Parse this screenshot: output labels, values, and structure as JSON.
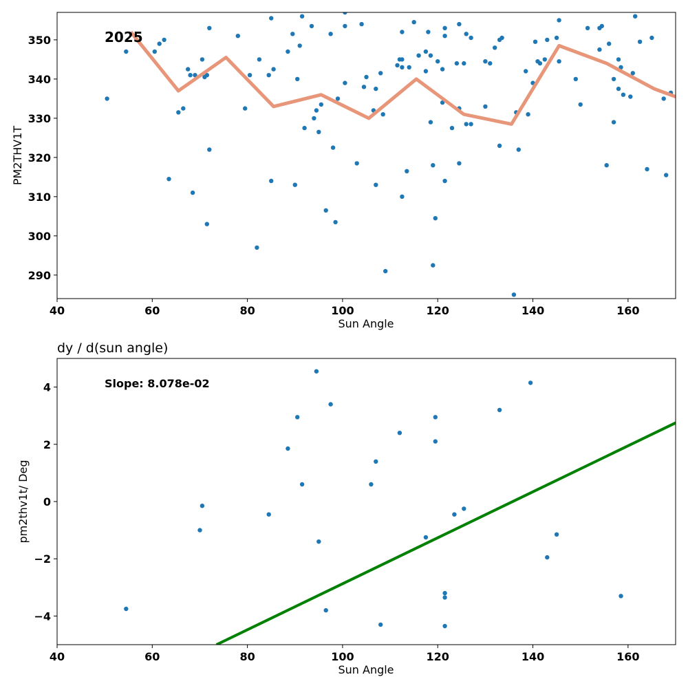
{
  "chart_data": [
    {
      "type": "scatter",
      "title": "",
      "xlabel": "Sun Angle",
      "ylabel": "PM2THV1T",
      "xlim": [
        40,
        170
      ],
      "ylim": [
        284,
        357
      ],
      "xticks": [
        40,
        60,
        80,
        100,
        120,
        140,
        160
      ],
      "yticks": [
        290,
        300,
        310,
        320,
        330,
        340,
        350
      ],
      "annotation": "2025",
      "grid": false,
      "series": [
        {
          "type": "scatter",
          "color": "#1f77b4",
          "points": [
            [
              50.5,
              335
            ],
            [
              54.5,
              347
            ],
            [
              60.5,
              347
            ],
            [
              61.5,
              349
            ],
            [
              62.5,
              350
            ],
            [
              63.5,
              314.5
            ],
            [
              65.5,
              331.5
            ],
            [
              66.5,
              332.5
            ],
            [
              67.5,
              342.5
            ],
            [
              68,
              341
            ],
            [
              68.5,
              311
            ],
            [
              69,
              341
            ],
            [
              70.5,
              345
            ],
            [
              71,
              340.5
            ],
            [
              71.5,
              303
            ],
            [
              71.5,
              341
            ],
            [
              72,
              353
            ],
            [
              72,
              322
            ],
            [
              78,
              351
            ],
            [
              79.5,
              332.5
            ],
            [
              80.5,
              341
            ],
            [
              82,
              297
            ],
            [
              82.5,
              345
            ],
            [
              84.5,
              341
            ],
            [
              85,
              355.5
            ],
            [
              85,
              314
            ],
            [
              85.5,
              342.5
            ],
            [
              88.5,
              347
            ],
            [
              89.5,
              351.5
            ],
            [
              90,
              313
            ],
            [
              90.5,
              340
            ],
            [
              91,
              348.5
            ],
            [
              91.5,
              356
            ],
            [
              92,
              327.5
            ],
            [
              93.5,
              353.5
            ],
            [
              94,
              330
            ],
            [
              94.5,
              332
            ],
            [
              95,
              326.5
            ],
            [
              95.5,
              333.5
            ],
            [
              96.5,
              306.5
            ],
            [
              97.5,
              351.5
            ],
            [
              98,
              322.5
            ],
            [
              98.5,
              303.5
            ],
            [
              99,
              335
            ],
            [
              100.5,
              357
            ],
            [
              100.5,
              353.5
            ],
            [
              100.5,
              339
            ],
            [
              103,
              318.5
            ],
            [
              104,
              354
            ],
            [
              104.5,
              338
            ],
            [
              105,
              340.5
            ],
            [
              106.5,
              332
            ],
            [
              107,
              313
            ],
            [
              107,
              337.5
            ],
            [
              108,
              341.5
            ],
            [
              108.5,
              331
            ],
            [
              109,
              291
            ],
            [
              111.5,
              343.5
            ],
            [
              112,
              345
            ],
            [
              112.5,
              343
            ],
            [
              112.5,
              345
            ],
            [
              112.5,
              310
            ],
            [
              112.5,
              352
            ],
            [
              113.5,
              316.5
            ],
            [
              114,
              343
            ],
            [
              115,
              354.5
            ],
            [
              116,
              346
            ],
            [
              117.5,
              342
            ],
            [
              117.5,
              347
            ],
            [
              118,
              352
            ],
            [
              118.5,
              329
            ],
            [
              118.5,
              346
            ],
            [
              119,
              318
            ],
            [
              119,
              292.5
            ],
            [
              119.5,
              304.5
            ],
            [
              120,
              344.5
            ],
            [
              121,
              334
            ],
            [
              121,
              342.5
            ],
            [
              121.5,
              353
            ],
            [
              121.5,
              351
            ],
            [
              121.5,
              314
            ],
            [
              123,
              327.5
            ],
            [
              124,
              344
            ],
            [
              124.5,
              354
            ],
            [
              124.5,
              332.5
            ],
            [
              124.5,
              318.5
            ],
            [
              125.5,
              344
            ],
            [
              126,
              328.5
            ],
            [
              126,
              351.5
            ],
            [
              127,
              328.5
            ],
            [
              127,
              350.5
            ],
            [
              130,
              344.5
            ],
            [
              130,
              333
            ],
            [
              131,
              344
            ],
            [
              132,
              348
            ],
            [
              133,
              323
            ],
            [
              133,
              350
            ],
            [
              133.5,
              350.5
            ],
            [
              136,
              285
            ],
            [
              136.5,
              331.5
            ],
            [
              137,
              322
            ],
            [
              138.5,
              342
            ],
            [
              139,
              331
            ],
            [
              140,
              339
            ],
            [
              140.5,
              349.5
            ],
            [
              141,
              344.5
            ],
            [
              141.5,
              344
            ],
            [
              142.5,
              345
            ],
            [
              143,
              350
            ],
            [
              145,
              350.5
            ],
            [
              145.5,
              355
            ],
            [
              145.5,
              344.5
            ],
            [
              149,
              340
            ],
            [
              150,
              333.5
            ],
            [
              151.5,
              353
            ],
            [
              154,
              347.5
            ],
            [
              154,
              353
            ],
            [
              154.5,
              353.5
            ],
            [
              155.5,
              318
            ],
            [
              156,
              349
            ],
            [
              157,
              340
            ],
            [
              157,
              329
            ],
            [
              158,
              345
            ],
            [
              158,
              337.5
            ],
            [
              158.5,
              343
            ],
            [
              159,
              336
            ],
            [
              160.5,
              335.5
            ],
            [
              161,
              341.5
            ],
            [
              161.5,
              356
            ],
            [
              162.5,
              349.5
            ],
            [
              164,
              317
            ],
            [
              165,
              350.5
            ],
            [
              167.5,
              335
            ],
            [
              168,
              315.5
            ],
            [
              169,
              336.5
            ]
          ]
        },
        {
          "type": "line",
          "color": "#e8967a",
          "points": [
            [
              55.5,
              352
            ],
            [
              65.5,
              337
            ],
            [
              75.5,
              345.5
            ],
            [
              85.5,
              333
            ],
            [
              95.5,
              336
            ],
            [
              105.5,
              330
            ],
            [
              115.5,
              340
            ],
            [
              125.5,
              331
            ],
            [
              135.5,
              328.5
            ],
            [
              145.5,
              348.5
            ],
            [
              155.5,
              344
            ],
            [
              165.5,
              337.5
            ],
            [
              170,
              335.5
            ]
          ]
        }
      ]
    },
    {
      "type": "scatter",
      "title": "dy / d(sun angle)",
      "xlabel": "Sun Angle",
      "ylabel": "pm2thv1t/ Deg",
      "xlim": [
        40,
        170
      ],
      "ylim": [
        -5,
        5
      ],
      "xticks": [
        40,
        60,
        80,
        100,
        120,
        140,
        160
      ],
      "yticks": [
        -4,
        -2,
        0,
        2,
        4
      ],
      "ytick_labels": [
        "−4",
        "−2",
        "0",
        "2",
        "4"
      ],
      "annotation": "Slope: 8.078e-02",
      "grid": false,
      "series": [
        {
          "type": "scatter",
          "color": "#1f77b4",
          "points": [
            [
              54.5,
              -3.75
            ],
            [
              70,
              -1
            ],
            [
              70.5,
              -0.15
            ],
            [
              84.5,
              -0.45
            ],
            [
              88.5,
              1.85
            ],
            [
              90.5,
              2.95
            ],
            [
              91.5,
              0.6
            ],
            [
              94.5,
              4.55
            ],
            [
              95,
              -1.4
            ],
            [
              96.5,
              -3.8
            ],
            [
              97.5,
              3.4
            ],
            [
              106,
              0.6
            ],
            [
              107,
              1.4
            ],
            [
              108,
              -4.3
            ],
            [
              112,
              2.4
            ],
            [
              117.5,
              -1.25
            ],
            [
              119.5,
              2.95
            ],
            [
              119.5,
              2.1
            ],
            [
              121.5,
              -3.2
            ],
            [
              121.5,
              -3.35
            ],
            [
              121.5,
              -4.35
            ],
            [
              123.5,
              -0.45
            ],
            [
              125.5,
              -0.25
            ],
            [
              133,
              3.2
            ],
            [
              139.5,
              4.15
            ],
            [
              143,
              -1.95
            ],
            [
              145,
              -1.15
            ],
            [
              158.5,
              -3.3
            ]
          ]
        },
        {
          "type": "line",
          "color": "#008000",
          "points": [
            [
              73.5,
              -5.0
            ],
            [
              170,
              2.75
            ]
          ]
        }
      ]
    }
  ]
}
